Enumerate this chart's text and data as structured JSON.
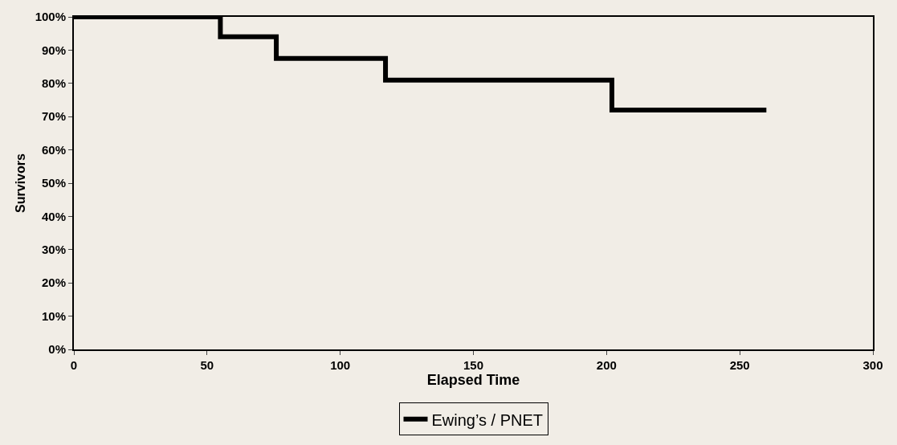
{
  "chart_data": {
    "type": "step",
    "xlabel": "Elapsed Time",
    "ylabel": "Survivors",
    "x": [
      0,
      55,
      76,
      117,
      202,
      260
    ],
    "series": [
      {
        "name": "Ewing’s / PNET",
        "color": "#000000",
        "values": [
          100,
          94,
          87.5,
          81,
          72,
          72
        ]
      }
    ],
    "xlim": [
      0,
      300
    ],
    "xticks": [
      0,
      50,
      100,
      150,
      200,
      250,
      300
    ],
    "ylim": [
      0,
      100
    ],
    "yticks": [
      {
        "value": 0,
        "label": "0%"
      },
      {
        "value": 10,
        "label": "10%"
      },
      {
        "value": 20,
        "label": "20%"
      },
      {
        "value": 30,
        "label": "30%"
      },
      {
        "value": 40,
        "label": "40%"
      },
      {
        "value": 50,
        "label": "50%"
      },
      {
        "value": 60,
        "label": "60%"
      },
      {
        "value": 70,
        "label": "70%"
      },
      {
        "value": 80,
        "label": "80%"
      },
      {
        "value": 90,
        "label": "90%"
      },
      {
        "value": 100,
        "label": "100%"
      }
    ],
    "grid": false,
    "legend": "bottom",
    "marker": "none",
    "line_style": "solid"
  }
}
